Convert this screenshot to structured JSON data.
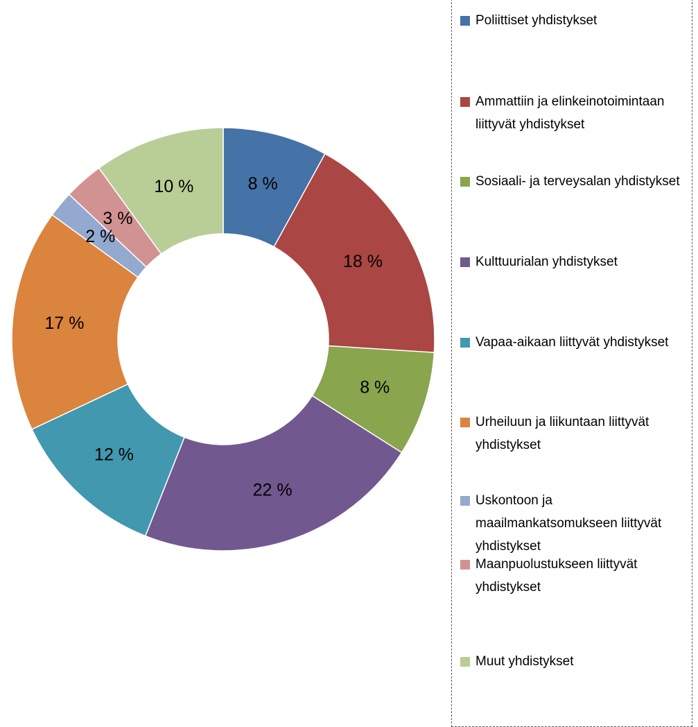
{
  "chart_data": {
    "type": "donut",
    "categories": [
      "Poliittiset yhdistykset",
      "Ammattiin ja elinkeinotoimintaan liittyvät yhdistykset",
      "Sosiaali- ja terveysalan yhdistykset",
      "Kulttuurialan yhdistykset",
      "Vapaa-aikaan liittyvät yhdistykset",
      "Urheiluun ja liikuntaan liittyvät yhdistykset",
      "Uskontoon ja maailmankatsomukseen liittyvät yhdistykset",
      "Maanpuolustukseen liittyvät yhdistykset",
      "Muut yhdistykset"
    ],
    "values": [
      8,
      18,
      8,
      22,
      12,
      17,
      2,
      3,
      10
    ],
    "value_labels": [
      "8 %",
      "18 %",
      "8 %",
      "22 %",
      "12 %",
      "17 %",
      "2 %",
      "3 %",
      "10 %"
    ],
    "colors": [
      "#4572a7",
      "#aa4643",
      "#89a54e",
      "#71588f",
      "#4198af",
      "#db843d",
      "#93a9cf",
      "#d19392",
      "#b9cd96"
    ],
    "legend": "right"
  }
}
